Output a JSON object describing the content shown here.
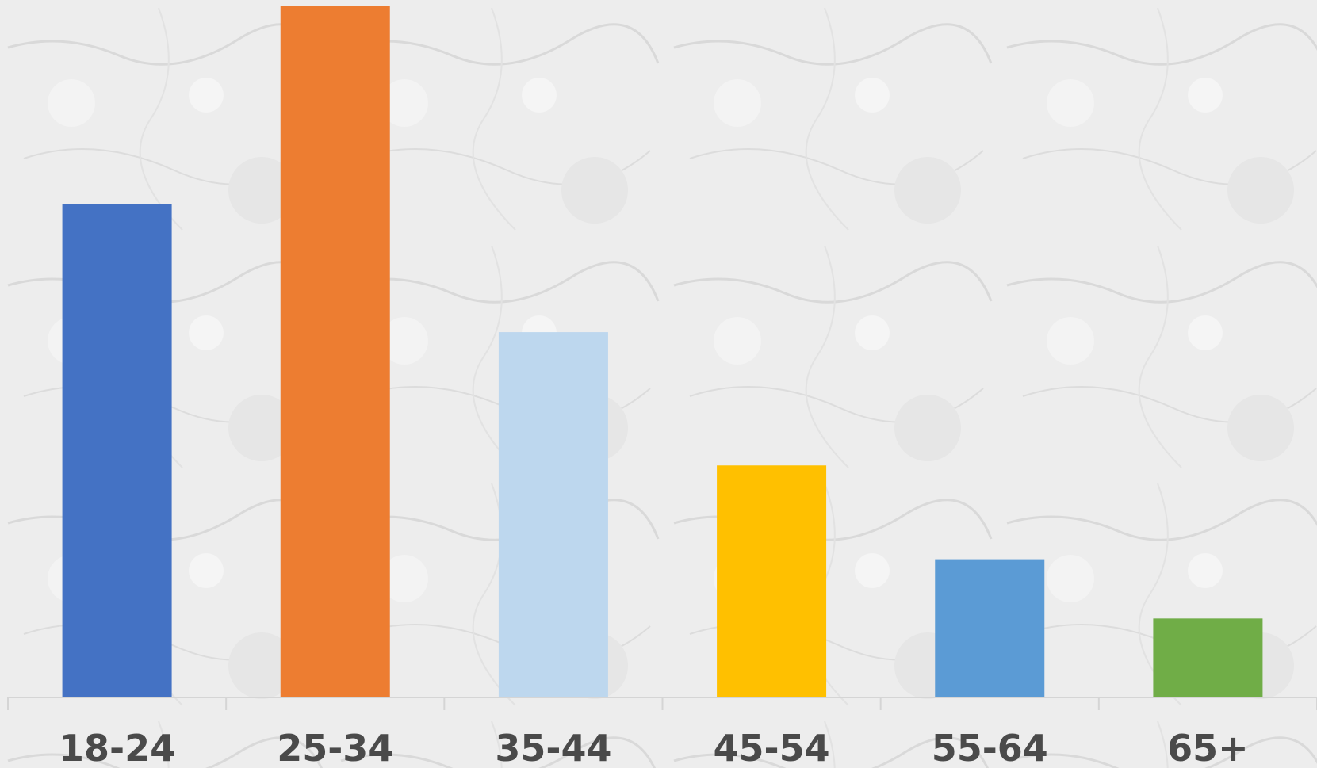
{
  "chart_data": {
    "type": "bar",
    "categories": [
      "18-24",
      "25-34",
      "35-44",
      "45-54",
      "55-64",
      "65+"
    ],
    "values": [
      100,
      140,
      74,
      47,
      28,
      16
    ],
    "colors": [
      "#4472C4",
      "#ED7D31",
      "#BDD7EE",
      "#FFC000",
      "#5B9BD5",
      "#70AD47"
    ],
    "ylim": [
      0,
      140
    ],
    "grid": false,
    "title": "",
    "xlabel": "",
    "ylabel": ""
  }
}
